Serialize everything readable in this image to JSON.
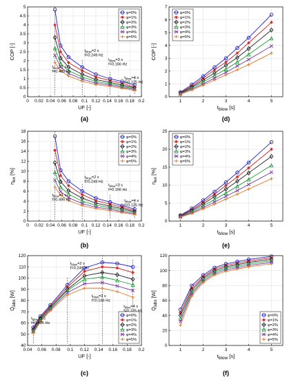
{
  "figure": {
    "panel_labels": [
      "(a)",
      "(b)",
      "(c)",
      "(d)",
      "(e)",
      "(f)"
    ]
  },
  "style": {
    "series_colors": [
      "#1f1fd0",
      "#d01f1f",
      "#202020",
      "#1f9d3a",
      "#7a3aa0",
      "#e0782a"
    ],
    "markers": [
      "circle",
      "star",
      "diamond",
      "triangle",
      "x",
      "plus"
    ]
  },
  "chart_data": [
    {
      "type": "line",
      "panel": "(a)",
      "xlabel": "UF [-]",
      "ylabel": "COP [-]",
      "xlim": [
        0,
        0.2
      ],
      "ylim": [
        0,
        5
      ],
      "xticks": [
        0,
        0.02,
        0.04,
        0.06,
        0.08,
        0.1,
        0.12,
        0.14,
        0.16,
        0.18,
        0.2
      ],
      "yticks": [
        0,
        0.5,
        1,
        1.5,
        2,
        2.5,
        3,
        3.5,
        4,
        4.5,
        5
      ],
      "grid": true,
      "legend": "top-right",
      "x": [
        0.048,
        0.058,
        0.072,
        0.096,
        0.12,
        0.145,
        0.166,
        0.188
      ],
      "series": [
        {
          "name": "φ=0%",
          "values": [
            4.85,
            2.85,
            2.2,
            1.65,
            1.25,
            1.0,
            0.85,
            0.65
          ]
        },
        {
          "name": "φ=1%",
          "values": [
            4.0,
            2.5,
            1.9,
            1.45,
            1.1,
            0.9,
            0.75,
            0.55
          ]
        },
        {
          "name": "φ=2%",
          "values": [
            3.3,
            2.15,
            1.65,
            1.25,
            0.95,
            0.8,
            0.65,
            0.5
          ]
        },
        {
          "name": "φ=3%",
          "values": [
            2.7,
            1.85,
            1.45,
            1.1,
            0.85,
            0.72,
            0.58,
            0.45
          ]
        },
        {
          "name": "φ=4%",
          "values": [
            2.3,
            1.65,
            1.3,
            0.98,
            0.75,
            0.65,
            0.52,
            0.4
          ]
        },
        {
          "name": "φ=5%",
          "values": [
            1.9,
            1.45,
            1.15,
            0.86,
            0.67,
            0.58,
            0.47,
            0.35
          ]
        }
      ],
      "vlines": [
        0.048,
        0.096,
        0.145,
        0.188
      ],
      "annotations": [
        {
          "lines": [
            "t_blow=1 s",
            "f=0.495 Hz"
          ],
          "x": 0.043,
          "y": 1.6
        },
        {
          "lines": [
            "t_blow=2 s",
            "f=0.249 Hz"
          ],
          "x": 0.1,
          "y": 2.5
        },
        {
          "lines": [
            "t_blow=3 s",
            "f=0.166 Hz"
          ],
          "x": 0.142,
          "y": 2.0
        },
        {
          "lines": [
            "t_blow=4 s",
            "f=0.125 Hz"
          ],
          "x": 0.17,
          "y": 1.0
        }
      ]
    },
    {
      "type": "line",
      "panel": "(b)",
      "xlabel": "UF [-]",
      "ylabel": "η_ex [%]",
      "xlim": [
        0,
        0.2
      ],
      "ylim": [
        0,
        18
      ],
      "xticks": [
        0,
        0.02,
        0.04,
        0.06,
        0.08,
        0.1,
        0.12,
        0.14,
        0.16,
        0.18,
        0.2
      ],
      "yticks": [
        0,
        2,
        4,
        6,
        8,
        10,
        12,
        14,
        16,
        18
      ],
      "grid": true,
      "legend": "top-right",
      "x": [
        0.048,
        0.058,
        0.072,
        0.096,
        0.12,
        0.145,
        0.166,
        0.188
      ],
      "series": [
        {
          "name": "φ=0%",
          "values": [
            17.0,
            10.2,
            8.0,
            6.0,
            4.6,
            3.8,
            3.1,
            2.4
          ]
        },
        {
          "name": "φ=1%",
          "values": [
            14.2,
            9.1,
            7.1,
            5.3,
            4.1,
            3.4,
            2.8,
            2.1
          ]
        },
        {
          "name": "φ=2%",
          "values": [
            11.7,
            7.9,
            6.1,
            4.6,
            3.6,
            3.0,
            2.5,
            1.9
          ]
        },
        {
          "name": "φ=3%",
          "values": [
            9.8,
            6.8,
            5.4,
            4.0,
            3.2,
            2.7,
            2.2,
            1.7
          ]
        },
        {
          "name": "φ=4%",
          "values": [
            8.2,
            5.9,
            4.7,
            3.5,
            2.8,
            2.4,
            1.9,
            1.5
          ]
        },
        {
          "name": "φ=5%",
          "values": [
            6.8,
            5.2,
            4.1,
            3.1,
            2.5,
            2.1,
            1.7,
            1.3
          ]
        }
      ],
      "vlines": [
        0.048,
        0.096,
        0.145,
        0.188
      ],
      "annotations": [
        {
          "lines": [
            "t_blow=1 s",
            "f=0.495 Hz"
          ],
          "x": 0.043,
          "y": 5.0
        },
        {
          "lines": [
            "t_blow=2 s",
            "f=0.249 Hz"
          ],
          "x": 0.1,
          "y": 8.6
        },
        {
          "lines": [
            "t_blow=3 s",
            "f=0.166 Hz"
          ],
          "x": 0.142,
          "y": 7.0
        },
        {
          "lines": [
            "t_blow=4 s",
            "f=0.125 Hz"
          ],
          "x": 0.17,
          "y": 3.9
        }
      ]
    },
    {
      "type": "line",
      "panel": "(c)",
      "xlabel": "UF [-]",
      "ylabel": "Q̇_abs [W]",
      "xlim": [
        0.04,
        0.2
      ],
      "ylim": [
        40,
        120
      ],
      "xticks": [
        0.04,
        0.06,
        0.08,
        0.1,
        0.12,
        0.14,
        0.16,
        0.18,
        0.2
      ],
      "yticks": [
        40,
        50,
        60,
        70,
        80,
        90,
        100,
        110,
        120
      ],
      "grid": true,
      "legend": "bottom-right",
      "x": [
        0.048,
        0.058,
        0.072,
        0.096,
        0.12,
        0.145,
        0.166,
        0.188
      ],
      "series": [
        {
          "name": "φ=0%",
          "values": [
            56,
            66,
            76,
            94,
            109,
            114,
            113,
            110
          ]
        },
        {
          "name": "φ=1%",
          "values": [
            55,
            65,
            75,
            92,
            106,
            110,
            109,
            105
          ]
        },
        {
          "name": "φ=2%",
          "values": [
            54,
            64,
            74,
            90,
            102,
            105,
            103,
            99
          ]
        },
        {
          "name": "φ=3%",
          "values": [
            53,
            63,
            73,
            89,
            99,
            101,
            98,
            94
          ]
        },
        {
          "name": "φ=4%",
          "values": [
            52,
            62,
            72,
            87,
            95,
            96,
            93,
            89
          ]
        },
        {
          "name": "φ=5%",
          "values": [
            51,
            61,
            71,
            85,
            91,
            91,
            88,
            83
          ]
        }
      ],
      "vlines": [
        0.048,
        0.096,
        0.145,
        0.188
      ],
      "annotations": [
        {
          "lines": [
            "t_blow=1 s",
            "f=0.495 Hz"
          ],
          "x": 0.045,
          "y": 63
        },
        {
          "lines": [
            "t_blow=2 s",
            "f=0.249 Hz"
          ],
          "x": 0.1,
          "y": 112
        },
        {
          "lines": [
            "t_blow=3 s",
            "f=0.166 Hz"
          ],
          "x": 0.13,
          "y": 83
        },
        {
          "lines": [
            "t_blow=4 s",
            "f=0.125 Hz"
          ],
          "x": 0.175,
          "y": 74
        }
      ]
    },
    {
      "type": "line",
      "panel": "(d)",
      "xlabel": "t_blow [s]",
      "ylabel": "COP [-]",
      "xlim": [
        0.5,
        5.5
      ],
      "ylim": [
        0,
        7
      ],
      "xticks": [
        1,
        2,
        3,
        4,
        5
      ],
      "yticks": [
        0,
        1,
        2,
        3,
        4,
        5,
        6,
        7
      ],
      "grid": true,
      "legend": "top-left",
      "x": [
        1,
        1.5,
        2,
        2.5,
        3,
        3.5,
        4,
        5
      ],
      "series": [
        {
          "name": "φ=0%",
          "values": [
            0.35,
            0.95,
            1.6,
            2.3,
            3.0,
            3.8,
            4.6,
            6.4
          ]
        },
        {
          "name": "φ=1%",
          "values": [
            0.3,
            0.85,
            1.45,
            2.1,
            2.7,
            3.4,
            4.2,
            5.8
          ]
        },
        {
          "name": "φ=2%",
          "values": [
            0.28,
            0.75,
            1.3,
            1.85,
            2.45,
            3.05,
            3.75,
            5.2
          ]
        },
        {
          "name": "φ=3%",
          "values": [
            0.25,
            0.68,
            1.15,
            1.65,
            2.15,
            2.7,
            3.3,
            4.55
          ]
        },
        {
          "name": "φ=4%",
          "values": [
            0.22,
            0.6,
            1.0,
            1.45,
            1.9,
            2.4,
            2.9,
            3.95
          ]
        },
        {
          "name": "φ=5%",
          "values": [
            0.2,
            0.52,
            0.9,
            1.3,
            1.7,
            2.1,
            2.5,
            3.4
          ]
        }
      ]
    },
    {
      "type": "line",
      "panel": "(e)",
      "xlabel": "t_blow [s]",
      "ylabel": "η_ex [%]",
      "xlim": [
        0.5,
        5.5
      ],
      "ylim": [
        0,
        25
      ],
      "xticks": [
        1,
        2,
        3,
        4,
        5
      ],
      "yticks": [
        0,
        5,
        10,
        15,
        20,
        25
      ],
      "grid": true,
      "legend": "top-left",
      "x": [
        1,
        1.5,
        2,
        2.5,
        3,
        3.5,
        4,
        5
      ],
      "series": [
        {
          "name": "φ=0%",
          "values": [
            1.6,
            3.5,
            5.8,
            8.2,
            10.8,
            13.5,
            16.3,
            22.0
          ]
        },
        {
          "name": "φ=1%",
          "values": [
            1.5,
            3.2,
            5.3,
            7.5,
            9.9,
            12.3,
            14.8,
            20.0
          ]
        },
        {
          "name": "φ=2%",
          "values": [
            1.4,
            2.9,
            4.8,
            6.8,
            8.9,
            11.1,
            13.4,
            18.0
          ]
        },
        {
          "name": "φ=3%",
          "values": [
            1.3,
            2.6,
            4.3,
            6.0,
            7.8,
            9.7,
            11.6,
            15.5
          ]
        },
        {
          "name": "φ=4%",
          "values": [
            1.2,
            2.3,
            3.8,
            5.3,
            6.9,
            8.5,
            10.2,
            13.6
          ]
        },
        {
          "name": "φ=5%",
          "values": [
            1.1,
            2.1,
            3.4,
            4.7,
            6.1,
            7.5,
            8.9,
            11.8
          ]
        }
      ]
    },
    {
      "type": "line",
      "panel": "(f)",
      "xlabel": "t_blow [s]",
      "ylabel": "Q̇_abs [W]",
      "xlim": [
        0.5,
        5.5
      ],
      "ylim": [
        0,
        120
      ],
      "xticks": [
        1,
        2,
        3,
        4,
        5
      ],
      "yticks": [
        0,
        20,
        40,
        60,
        80,
        100,
        120
      ],
      "grid": true,
      "legend": "bottom-right",
      "x": [
        1,
        1.5,
        2,
        2.5,
        3,
        3.5,
        4,
        5
      ],
      "series": [
        {
          "name": "φ=0%",
          "values": [
            48,
            80,
            94,
            104,
            109,
            112,
            115,
            119
          ]
        },
        {
          "name": "φ=1%",
          "values": [
            44,
            77,
            92,
            102,
            107,
            110,
            113,
            117
          ]
        },
        {
          "name": "φ=2%",
          "values": [
            40,
            74,
            90,
            100,
            105,
            108,
            111,
            115
          ]
        },
        {
          "name": "φ=3%",
          "values": [
            36,
            71,
            88,
            98,
            103,
            106,
            109,
            113
          ]
        },
        {
          "name": "φ=4%",
          "values": [
            32,
            69,
            86,
            96,
            101,
            104,
            107,
            111
          ]
        },
        {
          "name": "φ=5%",
          "values": [
            27,
            66,
            84,
            94,
            99,
            102,
            105,
            109
          ]
        }
      ]
    }
  ]
}
